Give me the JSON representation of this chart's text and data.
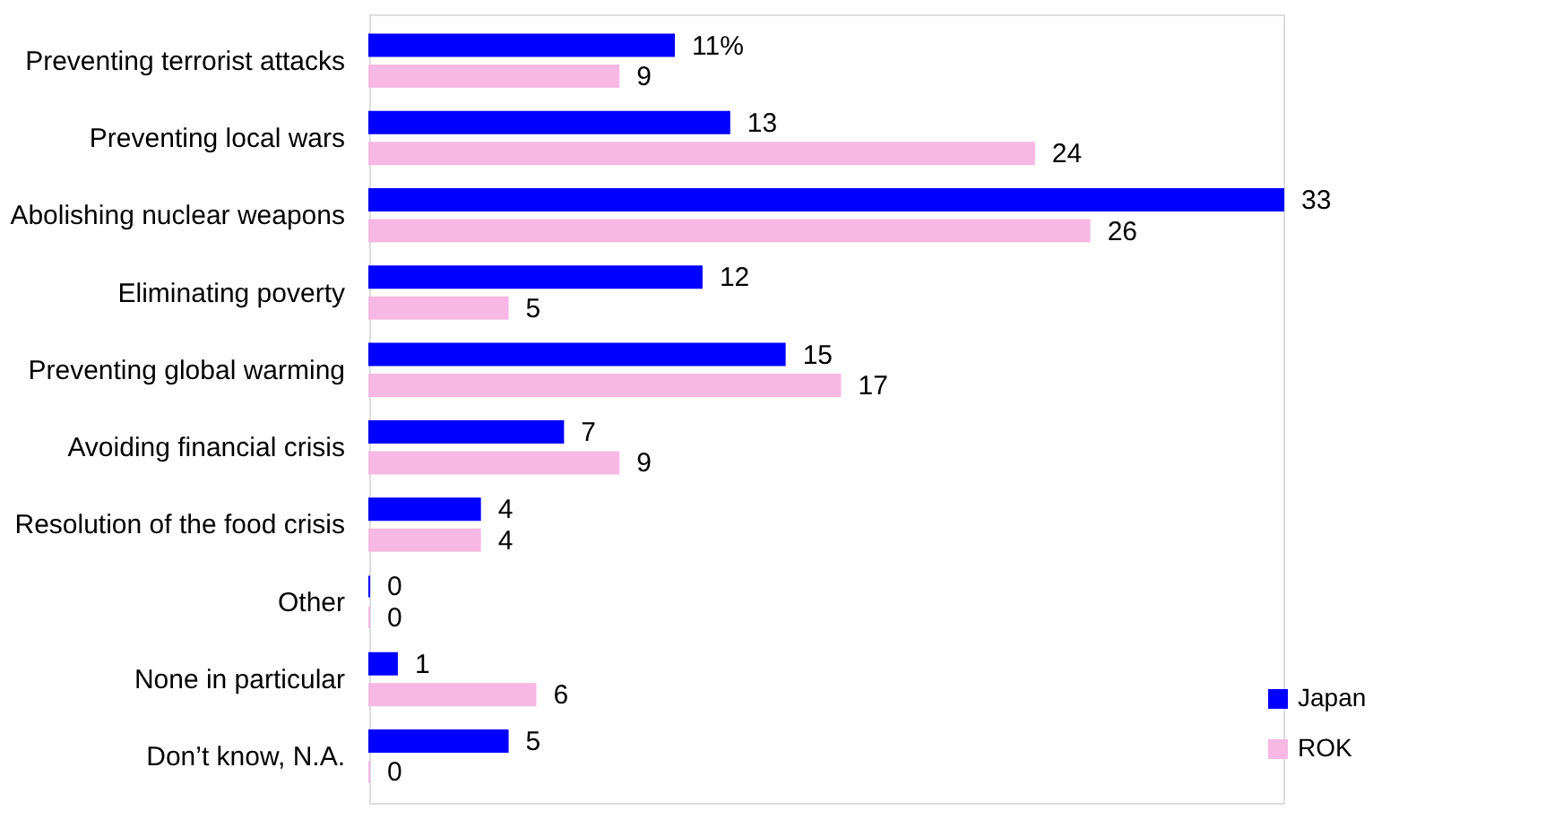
{
  "chart_data": {
    "type": "bar",
    "orientation": "horizontal",
    "categories": [
      "Preventing terrorist attacks",
      "Preventing local wars",
      "Abolishing nuclear weapons",
      "Eliminating poverty",
      "Preventing global warming",
      "Avoiding financial crisis",
      "Resolution of the food crisis",
      "Other",
      "None in particular",
      "Don’t know, N.A."
    ],
    "series": [
      {
        "name": "Japan",
        "color": "#0000ff",
        "values": [
          11,
          13,
          33,
          12,
          15,
          7,
          4,
          0,
          1,
          5
        ],
        "value_labels": [
          "11%",
          "13",
          "33",
          "12",
          "15",
          "7",
          "4",
          "0",
          "1",
          "5"
        ]
      },
      {
        "name": "ROK",
        "color": "#f7b8e4",
        "values": [
          9,
          24,
          26,
          5,
          17,
          9,
          4,
          0,
          6,
          0
        ],
        "value_labels": [
          "9",
          "24",
          "26",
          "5",
          "17",
          "9",
          "4",
          "0",
          "6",
          "0"
        ]
      }
    ],
    "legend": "bottom right"
  }
}
